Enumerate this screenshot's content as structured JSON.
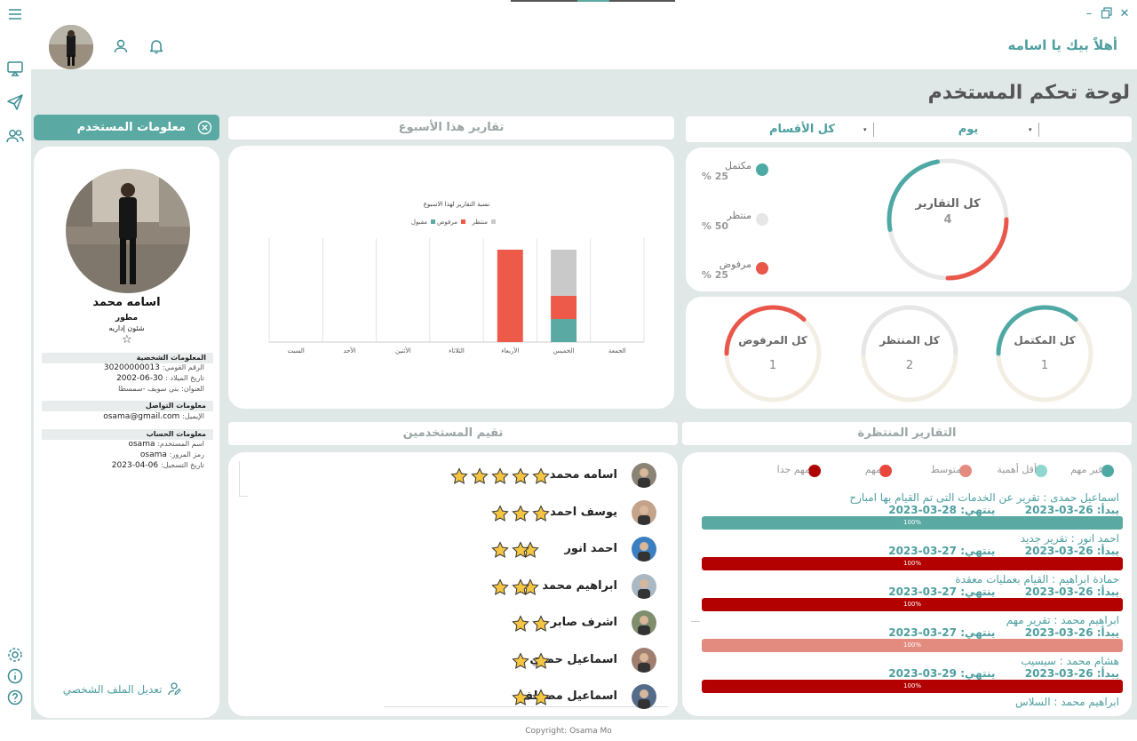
{
  "header": {
    "welcome": "أهلاً بيك يا اسامه"
  },
  "page_title": "لوحة تحكم المستخدم",
  "filters": {
    "period_value": "يوم",
    "department_value": "كل الأقسام"
  },
  "summary": {
    "ring_title": "كل التقارير",
    "ring_total": "4",
    "legend": [
      {
        "label": "مكتمل",
        "pct": "25 %",
        "color": "#4ea9a5"
      },
      {
        "label": "منتظر",
        "pct": "50 %",
        "color": "#e6e6e6"
      },
      {
        "label": "مرفوض",
        "pct": "25 %",
        "color": "#e9574a"
      }
    ]
  },
  "counters": [
    {
      "label": "كل المكتمل",
      "value": "1"
    },
    {
      "label": "كل المنتظر",
      "value": "2"
    },
    {
      "label": "كل المرفوض",
      "value": "1"
    }
  ],
  "weekly": {
    "header": "تقارير هذا الأسبوع"
  },
  "chart_data": {
    "type": "bar",
    "title": "نسبة التقارير لهذا الاسبوع",
    "categories": [
      "الجمعة",
      "الخميس",
      "الأربعاء",
      "الثلاثاء",
      "الأثنين",
      "الأحد",
      "السبت"
    ],
    "series": [
      {
        "name": "مقبول",
        "color": "#5aa9a3",
        "values": [
          0,
          1,
          0,
          0,
          0,
          0,
          0
        ]
      },
      {
        "name": "مرفوض",
        "color": "#ee5a4a",
        "values": [
          0,
          1,
          4,
          0,
          0,
          0,
          0
        ]
      },
      {
        "name": "منتظر",
        "color": "#c9c9c9",
        "values": [
          0,
          2,
          0,
          0,
          0,
          0,
          0
        ]
      }
    ],
    "stacked": true,
    "grid": true,
    "legend": "top",
    "ylim": [
      0,
      4.5
    ]
  },
  "user_info": {
    "header": "معلومات المستخدم",
    "name": "اسامه محمد",
    "role": "مطور",
    "department": "شئون إداريه",
    "personal_title": "المعلومات الشخصية",
    "national_id_label": "الرقم القومي:",
    "national_id": "30200000013",
    "birth_label": "تاريخ الميلاد :",
    "birth": "30-06-2002",
    "address_label": "العنوان:",
    "address": "بني سويف -سمسطا",
    "contact_title": "معلومات التواصل",
    "email_label": "الإيميل:",
    "email": "osama@gmail.com",
    "account_title": "معلومات الحساب",
    "username_label": "اسم المستخدم:",
    "username": "osama",
    "password_label": "رمز المرور:",
    "password": "osama",
    "register_label": "تاريخ التسجيل:",
    "register": "06-04-2023",
    "edit_profile": "تعديل الملف الشخصي"
  },
  "ratings": {
    "header": "تقيم المستخدمين",
    "items": [
      {
        "name": "اسامه محمد",
        "stars": 5
      },
      {
        "name": "يوسف احمد",
        "stars": 3
      },
      {
        "name": "احمد انور",
        "stars": 3
      },
      {
        "name": "ابراهيم محمد",
        "stars": 3
      },
      {
        "name": "اشرف صابر",
        "stars": 2
      },
      {
        "name": "اسماعيل حمدي",
        "stars": 2
      },
      {
        "name": "اسماعيل مصطف",
        "stars": 2
      }
    ]
  },
  "pending": {
    "header": "التقارير المنتظرة",
    "priorities": [
      {
        "label": "غير مهم",
        "color": "#4ea9a5"
      },
      {
        "label": "أقل أهمية",
        "color": "#8fd6cf"
      },
      {
        "label": "متوسط",
        "color": "#e48b80"
      },
      {
        "label": "مهم",
        "color": "#e8473c"
      },
      {
        "label": "مهم جدا",
        "color": "#b00000"
      }
    ],
    "start_label": "يبدأ:",
    "end_label": "ينتهي:",
    "reports": [
      {
        "title": "اسماعيل  حمدى  :  تقرير عن الخدمات التى تم القيام بها  امبارح",
        "start": "26-03-2023",
        "end": "28-03-2023",
        "progress": "100%",
        "color": "#5aa9a3"
      },
      {
        "title": "احمد  انور  :  تقرير جديد",
        "start": "26-03-2023",
        "end": "27-03-2023",
        "progress": "100%",
        "color": "#b30000"
      },
      {
        "title": "حمادة  ابراهيم  :  القيام بعمليات معقدة",
        "start": "26-03-2023",
        "end": "27-03-2023",
        "progress": "100%",
        "color": "#b30000"
      },
      {
        "title": "ابراهيم  محمد  :  تقرير مهم",
        "start": "26-03-2023",
        "end": "27-03-2023",
        "progress": "100%",
        "color": "#e48b80"
      },
      {
        "title": "هشام  محمد  :  سيسيب",
        "start": "26-03-2023",
        "end": "29-03-2023",
        "progress": "100%",
        "color": "#b30000"
      },
      {
        "title": "ابراهيم  محمد  :  السلاس",
        "start": "",
        "end": "",
        "progress": "",
        "color": ""
      }
    ]
  },
  "footer": "Copyright: Osama Mo"
}
